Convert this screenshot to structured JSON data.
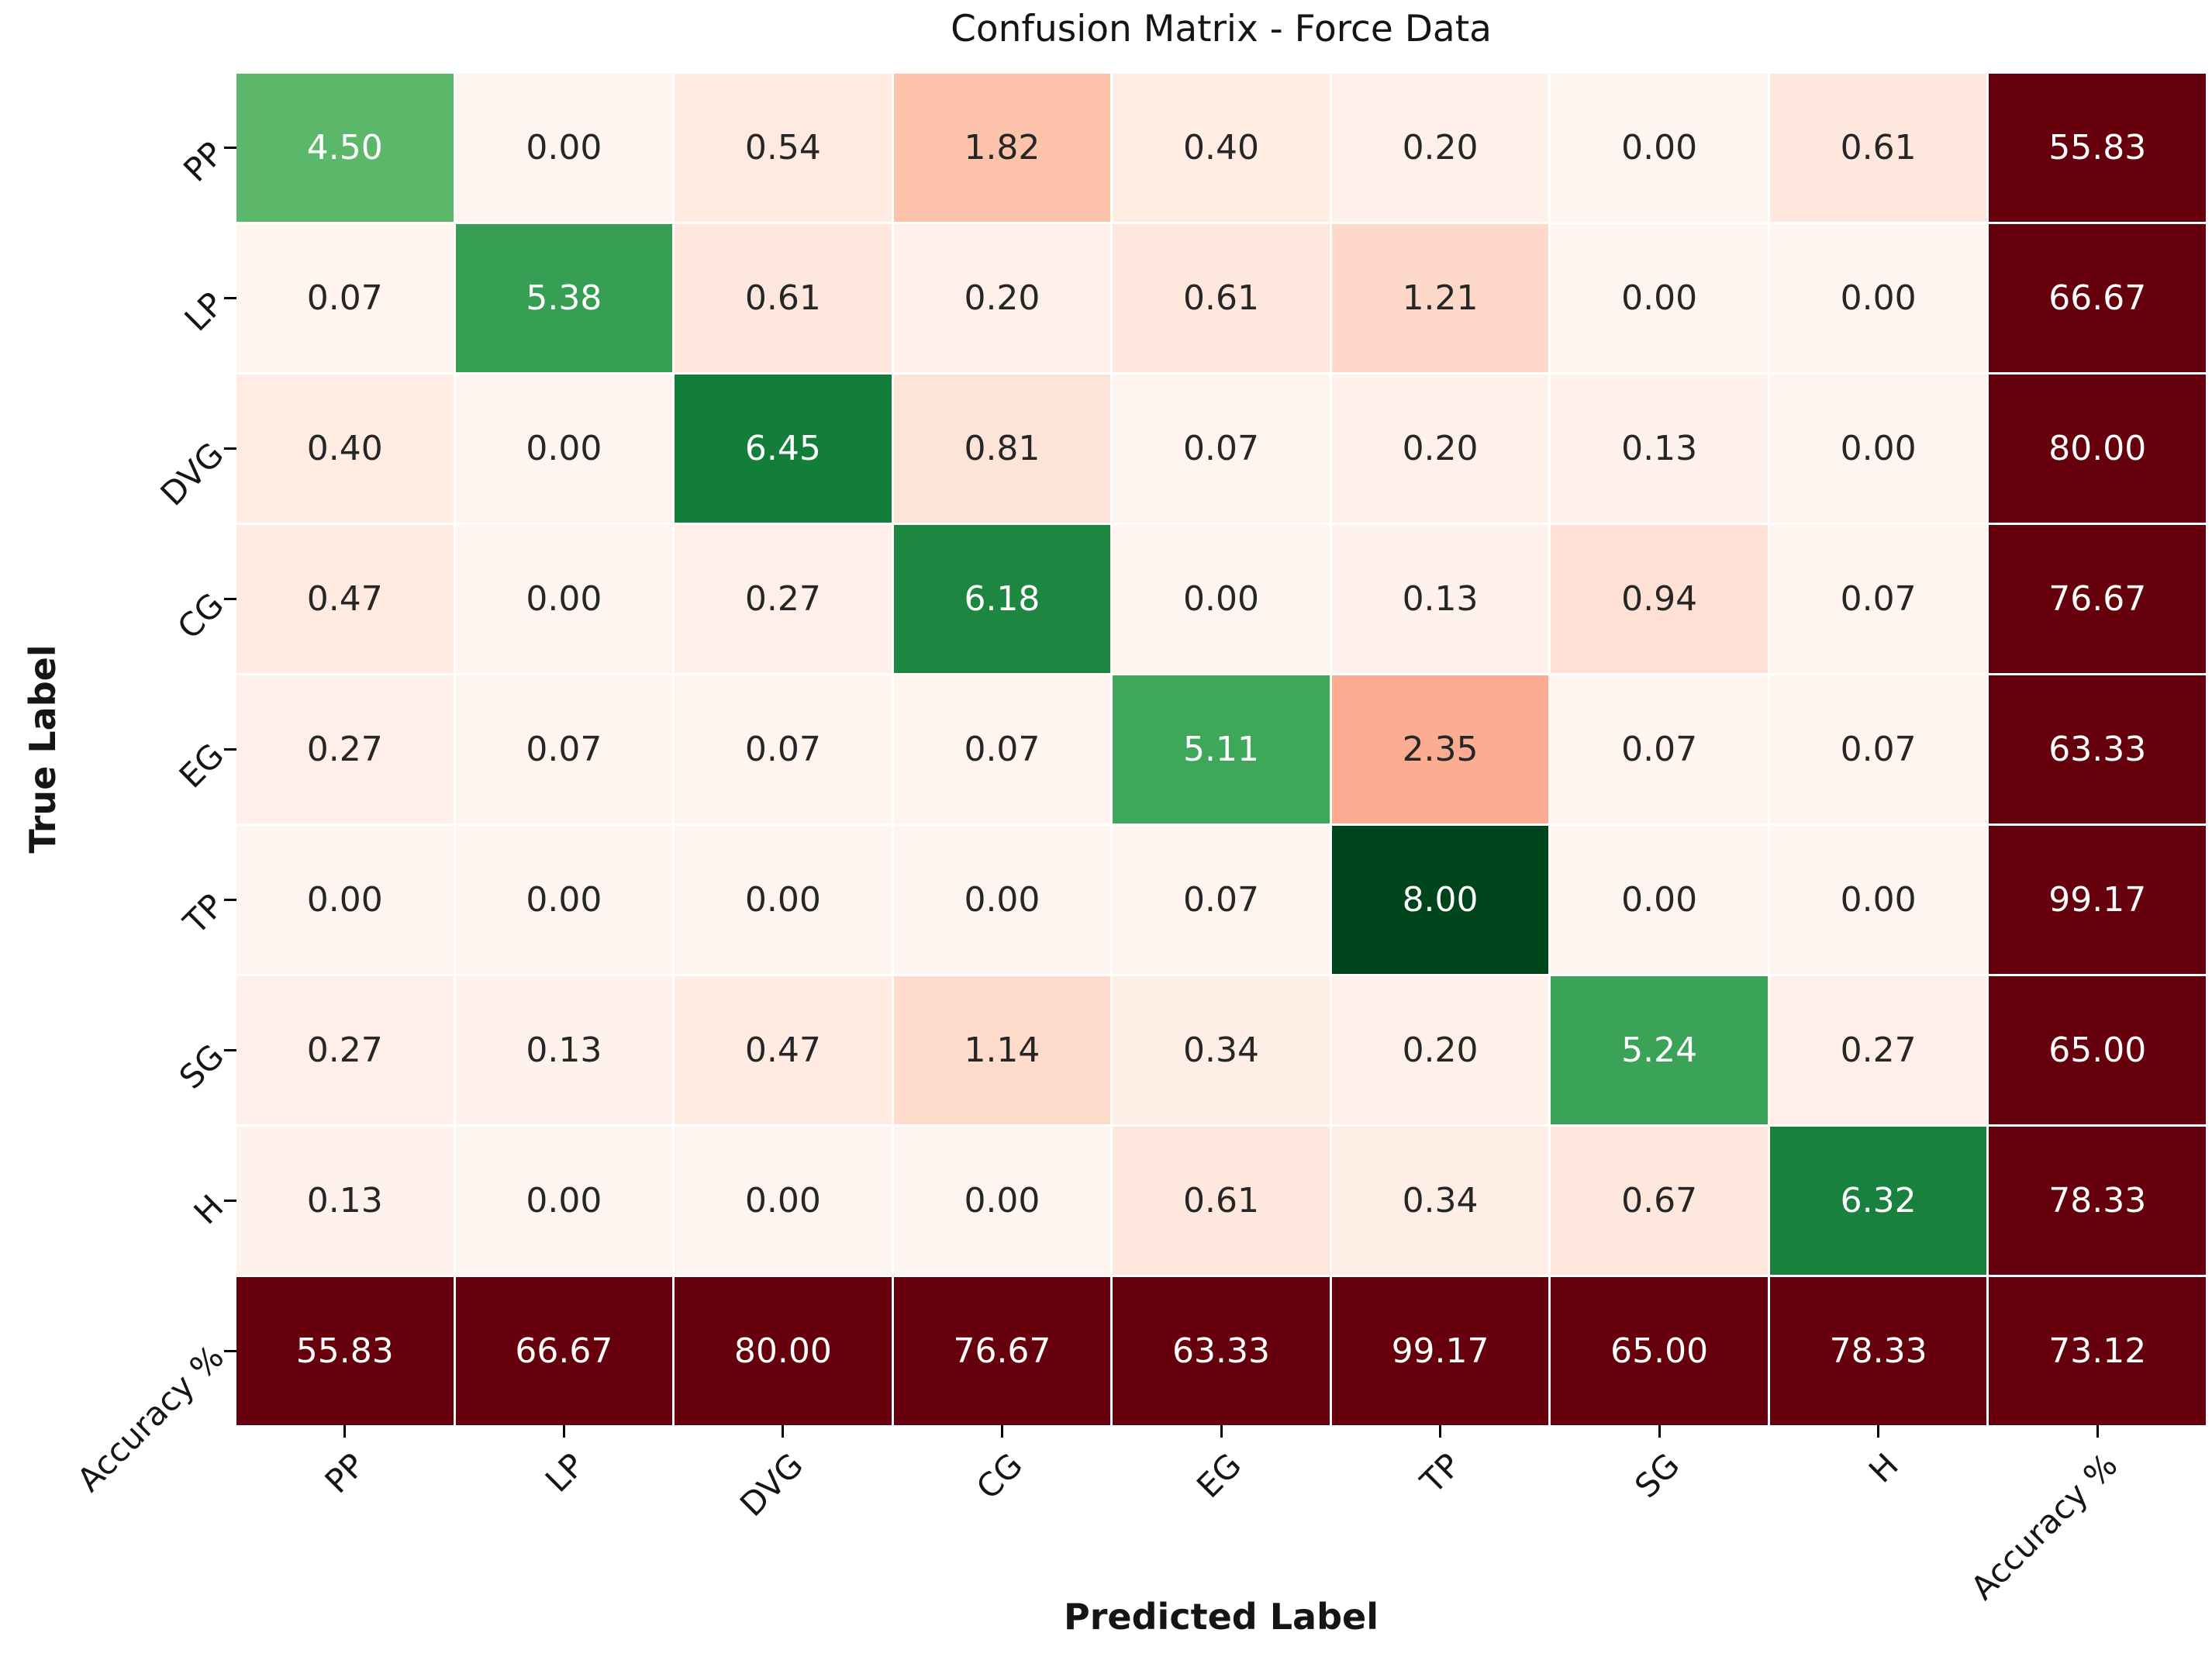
{
  "chart_data": {
    "type": "heatmap",
    "title": "Confusion Matrix - Force Data",
    "xlabel": "Predicted Label",
    "ylabel": "True Label",
    "x_tick_labels": [
      "PP",
      "LP",
      "DVG",
      "CG",
      "EG",
      "TP",
      "SG",
      "H",
      "Accuracy %"
    ],
    "y_tick_labels": [
      "PP",
      "LP",
      "DVG",
      "CG",
      "EG",
      "TP",
      "SG",
      "H",
      "Accuracy %"
    ],
    "rows": [
      [
        4.5,
        0.0,
        0.54,
        1.82,
        0.4,
        0.2,
        0.0,
        0.61,
        55.83
      ],
      [
        0.07,
        5.38,
        0.61,
        0.2,
        0.61,
        1.21,
        0.0,
        0.0,
        66.67
      ],
      [
        0.4,
        0.0,
        6.45,
        0.81,
        0.07,
        0.2,
        0.13,
        0.0,
        80.0
      ],
      [
        0.47,
        0.0,
        0.27,
        6.18,
        0.0,
        0.13,
        0.94,
        0.07,
        76.67
      ],
      [
        0.27,
        0.07,
        0.07,
        0.07,
        5.11,
        2.35,
        0.07,
        0.07,
        63.33
      ],
      [
        0.0,
        0.0,
        0.0,
        0.0,
        0.07,
        8.0,
        0.0,
        0.0,
        99.17
      ],
      [
        0.27,
        0.13,
        0.47,
        1.14,
        0.34,
        0.2,
        5.24,
        0.27,
        65.0
      ],
      [
        0.13,
        0.0,
        0.0,
        0.0,
        0.61,
        0.34,
        0.67,
        6.32,
        78.33
      ],
      [
        55.83,
        66.67,
        80.0,
        76.67,
        63.33,
        99.17,
        65.0,
        78.33,
        73.12
      ]
    ],
    "vmin": 0,
    "vmax": 8,
    "grid": true,
    "legend": "none",
    "colors": {
      "diagonal_green_stops": [
        "#f7fcf5",
        "#e5f5e0",
        "#c7e9c0",
        "#a1d99b",
        "#74c476",
        "#41ab5d",
        "#238b45",
        "#006d2c",
        "#00441b"
      ],
      "off_diagonal_red_stops": [
        "#fff5f0",
        "#fee0d2",
        "#fcbba1",
        "#fc9272",
        "#fb6a4a",
        "#ef3b2c",
        "#cb181d",
        "#a50f15",
        "#67000d"
      ],
      "summary_bg": "#67000d",
      "annotation_dark_text": "#262626",
      "annotation_light_text": "#ffffff",
      "background": "#ffffff",
      "gridline_color": "#ffffff",
      "tick_color": "#000000"
    }
  }
}
